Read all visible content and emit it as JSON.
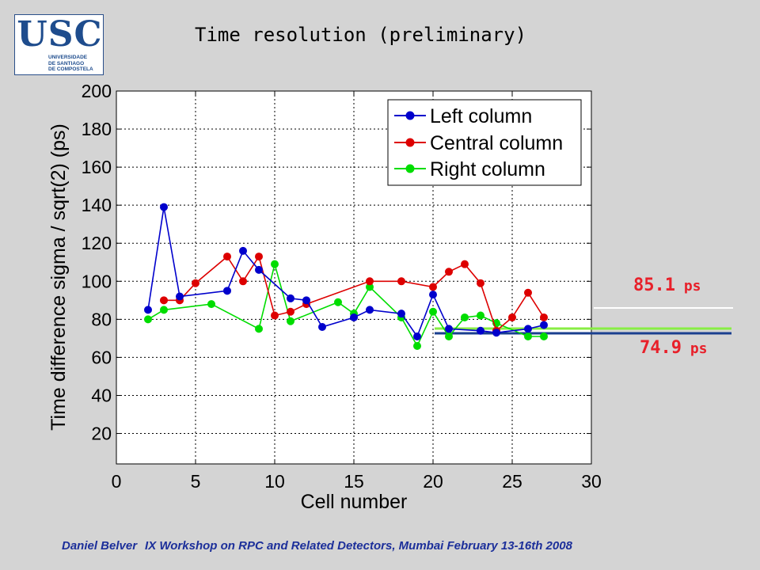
{
  "logo": {
    "letters": "USC",
    "lines": [
      "UNIVERSIDADE",
      "DE SANTIAGO",
      "DE COMPOSTELA"
    ]
  },
  "slide_title": "Time resolution (preliminary)",
  "footer": {
    "author": "Daniel Belver",
    "event": "IX Workshop on RPC and Related Detectors, Mumbai February 13-16th 2008"
  },
  "colors": {
    "left": "#0000cc",
    "central": "#dd0000",
    "right": "#00dd00",
    "annotation": "#e8202a",
    "avg_blue_line": "#1a3f8f",
    "avg_green_line": "#88ee44",
    "avg_white_line": "#ffffff"
  },
  "chart_data": {
    "type": "line",
    "title": "",
    "xlabel": "Cell number",
    "ylabel": "Time difference sigma / sqrt(2) (ps)",
    "xlim": [
      0,
      30
    ],
    "ylim": [
      4,
      200
    ],
    "xticks": [
      0,
      5,
      10,
      15,
      20,
      25,
      30
    ],
    "yticks": [
      20,
      40,
      60,
      80,
      100,
      120,
      140,
      160,
      180,
      200
    ],
    "grid": true,
    "legend_position": "top-right",
    "series": [
      {
        "name": "Left column",
        "x": [
          2,
          3,
          4,
          7,
          8,
          9,
          11,
          12,
          13,
          15,
          16,
          18,
          19,
          20,
          21,
          23,
          24,
          26,
          27
        ],
        "y": [
          85,
          139,
          92,
          95,
          116,
          106,
          91,
          90,
          76,
          81,
          85,
          83,
          71,
          93,
          75,
          74,
          73,
          75,
          77
        ]
      },
      {
        "name": "Central column",
        "x": [
          3,
          4,
          5,
          7,
          8,
          9,
          10,
          11,
          12,
          16,
          18,
          20,
          21,
          22,
          23,
          24,
          25,
          26,
          27
        ],
        "y": [
          90,
          90,
          99,
          113,
          100,
          113,
          82,
          84,
          88,
          100,
          100,
          97,
          105,
          109,
          99,
          74,
          81,
          94,
          81
        ]
      },
      {
        "name": "Right column",
        "x": [
          2,
          3,
          6,
          9,
          10,
          11,
          14,
          15,
          16,
          18,
          19,
          20,
          21,
          22,
          23,
          24,
          26,
          27
        ],
        "y": [
          80,
          85,
          88,
          75,
          109,
          79,
          89,
          83,
          97,
          81,
          66,
          84,
          71,
          81,
          82,
          78,
          71,
          71
        ]
      }
    ],
    "annotations": [
      {
        "value": "85.1",
        "unit": " ps"
      },
      {
        "value": "74.9",
        "unit": " ps"
      }
    ]
  }
}
